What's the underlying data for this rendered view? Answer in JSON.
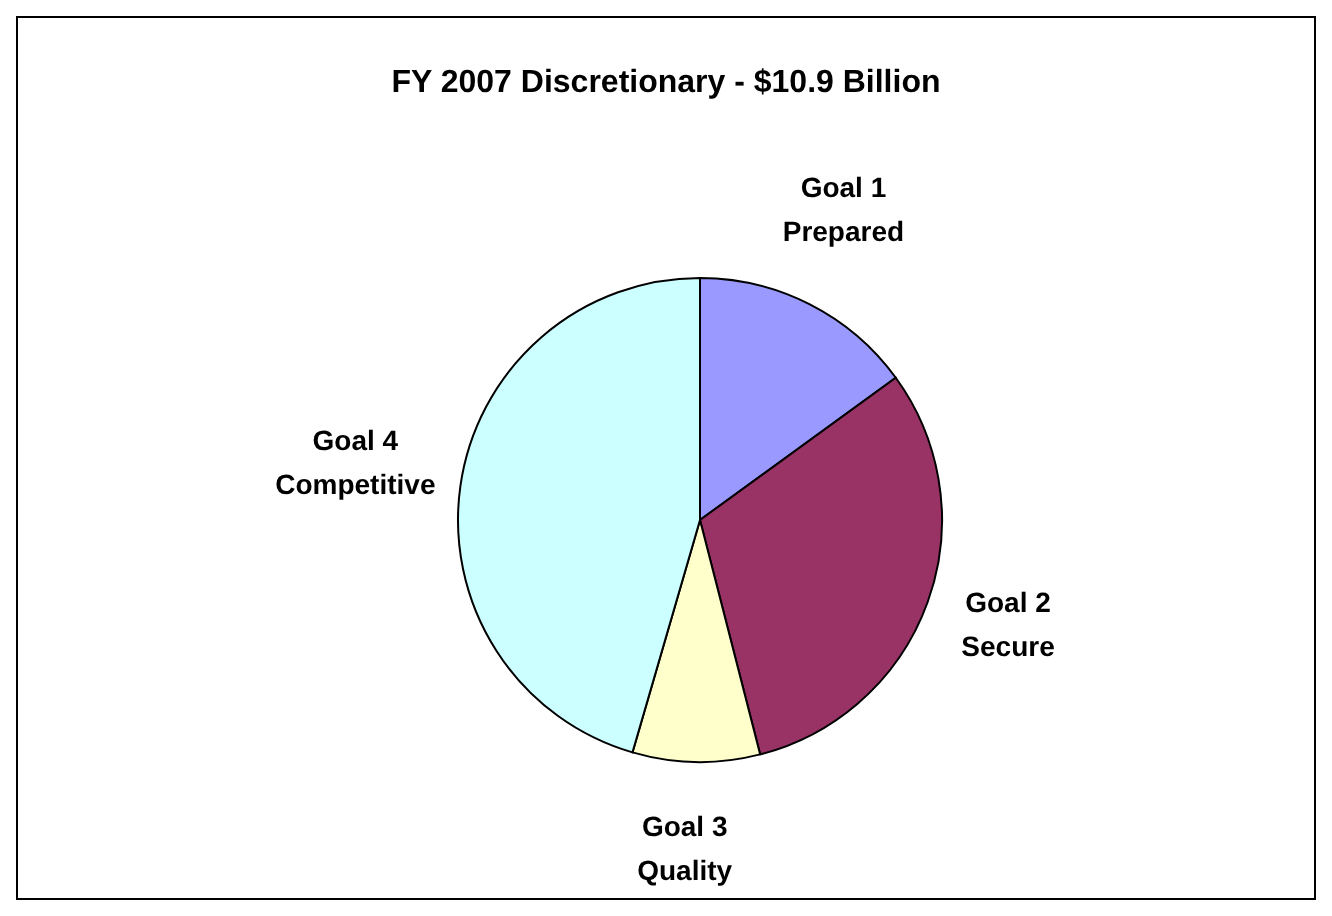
{
  "chart_data": {
    "type": "pie",
    "title": "FY 2007 Discretionary - $10.9 Billion",
    "categories": [
      "Goal 1\nPrepared",
      "Goal 2\nSecure",
      "Goal 3\nQuality",
      "Goal 4\nCompetitive"
    ],
    "values": [
      15,
      31,
      8.5,
      45.5
    ],
    "colors": [
      "#9999ff",
      "#993366",
      "#ffffcc",
      "#ccffff"
    ]
  }
}
